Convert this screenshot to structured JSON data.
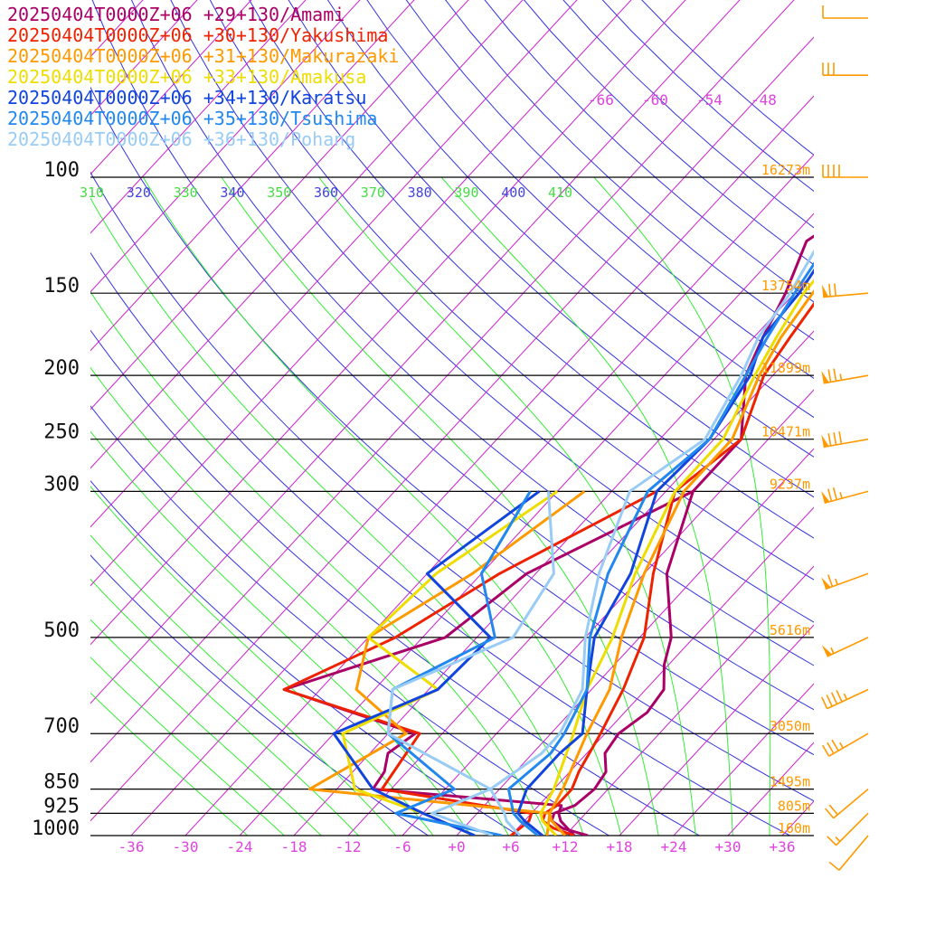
{
  "legend": [
    {
      "label": "20250404T0000Z+06 +29+130/Amami",
      "color": "#aa0066"
    },
    {
      "label": "20250404T0000Z+06 +30+130/Yakushima",
      "color": "#ee2200"
    },
    {
      "label": "20250404T0000Z+06 +31+130/Makurazaki",
      "color": "#ff9900"
    },
    {
      "label": "20250404T0000Z+06 +33+130/Amakusa",
      "color": "#eedd00"
    },
    {
      "label": "20250404T0000Z+06 +34+130/Karatsu",
      "color": "#1144dd"
    },
    {
      "label": "20250404T0000Z+06 +35+130/Tsushima",
      "color": "#2288ee"
    },
    {
      "label": "20250404T0000Z+06 +36+130/Pohang",
      "color": "#99ccf5"
    }
  ],
  "chart_data": {
    "type": "line",
    "pressure_levels": [
      {
        "p": 100,
        "label": "100",
        "height": "16273m"
      },
      {
        "p": 150,
        "label": "150",
        "height": "13754m"
      },
      {
        "p": 200,
        "label": "200",
        "height": "11899m"
      },
      {
        "p": 250,
        "label": "250",
        "height": "10471m"
      },
      {
        "p": 300,
        "label": "300",
        "height": "9237m"
      },
      {
        "p": 500,
        "label": "500",
        "height": "5616m"
      },
      {
        "p": 700,
        "label": "700",
        "height": "3050m"
      },
      {
        "p": 850,
        "label": "850",
        "height": "1495m"
      },
      {
        "p": 925,
        "label": "925",
        "height": "805m"
      },
      {
        "p": 1000,
        "label": "1000",
        "height": "160m"
      }
    ],
    "x_ticks": [
      "-36",
      "-30",
      "-24",
      "-18",
      "-12",
      "-6",
      "+0",
      "+6",
      "+12",
      "+18",
      "+24",
      "+30",
      "+36"
    ],
    "x_tick_values": [
      -36,
      -30,
      -24,
      -18,
      -12,
      -6,
      0,
      6,
      12,
      18,
      24,
      30,
      36
    ],
    "xlim": [
      -40,
      40
    ],
    "top_labels": [
      "-66",
      "-60",
      "-54",
      "-48"
    ],
    "theta_labels": [
      "310",
      "320",
      "330",
      "340",
      "350",
      "360",
      "370",
      "380",
      "390",
      "400",
      "410"
    ],
    "series": [
      {
        "name": "20250404T0000Z+06 +29+130/Amami",
        "color": "#aa0066",
        "temperature": [
          [
            1000,
            14.5
          ],
          [
            975,
            11
          ],
          [
            950,
            9
          ],
          [
            925,
            8.5
          ],
          [
            900,
            10
          ],
          [
            850,
            10.5
          ],
          [
            800,
            10
          ],
          [
            750,
            8
          ],
          [
            700,
            7.5
          ],
          [
            650,
            8.5
          ],
          [
            600,
            8
          ],
          [
            550,
            5.5
          ],
          [
            500,
            3.5
          ],
          [
            400,
            -3.5
          ],
          [
            300,
            -9
          ],
          [
            250,
            -9
          ],
          [
            200,
            -15
          ],
          [
            175,
            -17
          ],
          [
            150,
            -19
          ],
          [
            125,
            -22
          ],
          [
            100,
            -18
          ],
          [
            80,
            -24
          ],
          [
            70,
            -23
          ],
          [
            60,
            -13
          ],
          [
            50,
            0
          ]
        ],
        "dewpoint": [
          [
            1000,
            13
          ],
          [
            950,
            10
          ],
          [
            925,
            9
          ],
          [
            900,
            8.5
          ],
          [
            850,
            -14
          ],
          [
            800,
            -14.5
          ],
          [
            750,
            -16
          ],
          [
            700,
            -15
          ],
          [
            600,
            -34
          ],
          [
            500,
            -21.5
          ],
          [
            400,
            -19
          ],
          [
            300,
            -9
          ]
        ]
      },
      {
        "name": "20250404T0000Z+06 +30+130/Yakushima",
        "color": "#ee2200",
        "temperature": [
          [
            1000,
            13
          ],
          [
            975,
            10
          ],
          [
            950,
            8
          ],
          [
            925,
            7.5
          ],
          [
            900,
            8
          ],
          [
            850,
            8
          ],
          [
            800,
            7
          ],
          [
            700,
            5.5
          ],
          [
            600,
            3.5
          ],
          [
            500,
            0.5
          ],
          [
            400,
            -5
          ],
          [
            300,
            -11
          ],
          [
            250,
            -9
          ],
          [
            200,
            -13
          ],
          [
            175,
            -14
          ],
          [
            150,
            -15
          ],
          [
            125,
            -15
          ],
          [
            100,
            -16
          ],
          [
            80,
            -15
          ],
          [
            70,
            -11
          ],
          [
            60,
            -3
          ],
          [
            50,
            3
          ]
        ],
        "dewpoint": [
          [
            1000,
            6
          ],
          [
            950,
            6.5
          ],
          [
            925,
            6
          ],
          [
            850,
            -13
          ],
          [
            700,
            -14.5
          ],
          [
            600,
            -34
          ],
          [
            500,
            -27
          ],
          [
            400,
            -22
          ],
          [
            300,
            -13
          ]
        ]
      },
      {
        "name": "20250404T0000Z+06 +31+130/Makurazaki",
        "color": "#ff9900",
        "temperature": [
          [
            1000,
            12
          ],
          [
            950,
            9
          ],
          [
            925,
            8
          ],
          [
            850,
            7
          ],
          [
            700,
            4
          ],
          [
            600,
            2
          ],
          [
            500,
            -2
          ],
          [
            400,
            -6
          ],
          [
            300,
            -10
          ],
          [
            250,
            -10
          ],
          [
            200,
            -13.5
          ],
          [
            175,
            -15
          ],
          [
            150,
            -16
          ],
          [
            125,
            -17
          ],
          [
            100,
            -18
          ],
          [
            80,
            -17
          ],
          [
            70,
            -15
          ],
          [
            60,
            -6
          ],
          [
            50,
            2
          ]
        ],
        "dewpoint": [
          [
            1000,
            10
          ],
          [
            925,
            8
          ],
          [
            850,
            -21
          ],
          [
            700,
            -16
          ],
          [
            600,
            -26
          ],
          [
            500,
            -30
          ],
          [
            400,
            -25
          ],
          [
            300,
            -21
          ]
        ]
      },
      {
        "name": "20250404T0000Z+06 +33+130/Amakusa",
        "color": "#eedd00",
        "temperature": [
          [
            1000,
            11
          ],
          [
            950,
            8
          ],
          [
            925,
            7
          ],
          [
            850,
            6
          ],
          [
            700,
            2.5
          ],
          [
            600,
            -0.5
          ],
          [
            500,
            -3
          ],
          [
            400,
            -7
          ],
          [
            300,
            -11
          ],
          [
            250,
            -11
          ],
          [
            200,
            -14
          ],
          [
            175,
            -15.5
          ],
          [
            150,
            -17
          ],
          [
            125,
            -17.5
          ],
          [
            100,
            -18.5
          ],
          [
            80,
            -16.5
          ],
          [
            70,
            -14
          ],
          [
            60,
            -4
          ],
          [
            50,
            3
          ]
        ],
        "dewpoint": [
          [
            1000,
            2
          ],
          [
            925,
            -6
          ],
          [
            850,
            -16
          ],
          [
            700,
            -23
          ],
          [
            600,
            -17
          ],
          [
            500,
            -30
          ],
          [
            400,
            -29
          ],
          [
            300,
            -24
          ]
        ]
      },
      {
        "name": "20250404T0000Z+06 +34+130/Karatsu",
        "color": "#1144dd",
        "temperature": [
          [
            1000,
            9.5
          ],
          [
            950,
            6
          ],
          [
            925,
            4.5
          ],
          [
            850,
            3
          ],
          [
            750,
            3
          ],
          [
            700,
            3.5
          ],
          [
            600,
            -0.5
          ],
          [
            500,
            -5
          ],
          [
            400,
            -7.5
          ],
          [
            300,
            -13
          ],
          [
            250,
            -12.5
          ],
          [
            200,
            -14.5
          ],
          [
            175,
            -17
          ],
          [
            150,
            -17.5
          ],
          [
            125,
            -19
          ],
          [
            100,
            -20
          ],
          [
            80,
            -18
          ],
          [
            70,
            -15
          ],
          [
            60,
            -7
          ],
          [
            50,
            0
          ]
        ],
        "dewpoint": [
          [
            1000,
            2
          ],
          [
            925,
            -6
          ],
          [
            850,
            -14
          ],
          [
            700,
            -24
          ],
          [
            600,
            -17
          ],
          [
            500,
            -16.5
          ],
          [
            400,
            -30
          ],
          [
            300,
            -26
          ]
        ]
      },
      {
        "name": "20250404T0000Z+06 +35+130/Tsushima",
        "color": "#2288ee",
        "temperature": [
          [
            1000,
            9
          ],
          [
            950,
            5.5
          ],
          [
            925,
            4
          ],
          [
            850,
            1
          ],
          [
            750,
            2
          ],
          [
            700,
            1.5
          ],
          [
            600,
            -0.5
          ],
          [
            500,
            -5.5
          ],
          [
            400,
            -10
          ],
          [
            300,
            -14
          ],
          [
            250,
            -12.5
          ],
          [
            200,
            -15
          ],
          [
            175,
            -16.5
          ],
          [
            150,
            -18
          ],
          [
            125,
            -19.5
          ],
          [
            100,
            -21
          ],
          [
            80,
            -19
          ],
          [
            70,
            -16
          ],
          [
            60,
            -8
          ],
          [
            50,
            -2
          ]
        ],
        "dewpoint": [
          [
            1000,
            5
          ],
          [
            925,
            -9
          ],
          [
            850,
            -5
          ],
          [
            700,
            -18
          ],
          [
            600,
            -22
          ],
          [
            500,
            -16
          ],
          [
            400,
            -24
          ],
          [
            300,
            -27
          ]
        ]
      },
      {
        "name": "20250404T0000Z+06 +36+130/Pohang",
        "color": "#99ccf5",
        "temperature": [
          [
            1000,
            7
          ],
          [
            950,
            4
          ],
          [
            925,
            3
          ],
          [
            850,
            -1
          ],
          [
            750,
            1
          ],
          [
            700,
            1
          ],
          [
            600,
            -1
          ],
          [
            500,
            -6
          ],
          [
            400,
            -11
          ],
          [
            300,
            -16
          ],
          [
            250,
            -13
          ],
          [
            200,
            -15.5
          ],
          [
            175,
            -17.5
          ],
          [
            150,
            -18.5
          ],
          [
            125,
            -20.5
          ],
          [
            100,
            -23
          ],
          [
            80,
            -21
          ],
          [
            70,
            -18
          ],
          [
            60,
            -10
          ],
          [
            50,
            -4
          ]
        ],
        "dewpoint": [
          [
            1000,
            4
          ],
          [
            925,
            -5
          ],
          [
            850,
            -1
          ],
          [
            700,
            -18
          ],
          [
            600,
            -22
          ],
          [
            500,
            -14
          ],
          [
            400,
            -16
          ],
          [
            300,
            -25
          ]
        ]
      }
    ],
    "winds": [
      {
        "p": 1000,
        "dir": 220,
        "spd": 10
      },
      {
        "p": 925,
        "dir": 225,
        "spd": 15
      },
      {
        "p": 850,
        "dir": 230,
        "spd": 20
      },
      {
        "p": 700,
        "dir": 240,
        "spd": 35
      },
      {
        "p": 600,
        "dir": 245,
        "spd": 45
      },
      {
        "p": 500,
        "dir": 245,
        "spd": 55
      },
      {
        "p": 400,
        "dir": 250,
        "spd": 65
      },
      {
        "p": 300,
        "dir": 255,
        "spd": 75
      },
      {
        "p": 250,
        "dir": 260,
        "spd": 80
      },
      {
        "p": 200,
        "dir": 260,
        "spd": 75
      },
      {
        "p": 150,
        "dir": 265,
        "spd": 70
      },
      {
        "p": 100,
        "dir": 270,
        "spd": 40
      },
      {
        "p": 70,
        "dir": 270,
        "spd": 30
      },
      {
        "p": 50,
        "dir": 270,
        "spd": 10
      }
    ]
  }
}
